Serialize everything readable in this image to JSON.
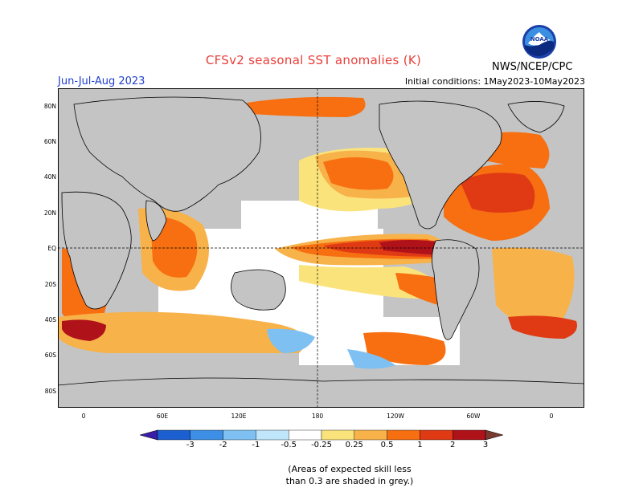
{
  "title": "CFSv2 seasonal SST anomalies (K)",
  "season": "Jun-Jul-Aug 2023",
  "initial_conditions": "Initial conditions: 1May2023-10May2023",
  "agency": "NWS/NCEP/CPC",
  "logo_text": "NOAA",
  "lat_labels": [
    "80N",
    "60N",
    "40N",
    "20N",
    "EQ",
    "20S",
    "40S",
    "60S",
    "80S"
  ],
  "lon_labels": [
    "0",
    "60E",
    "120E",
    "180",
    "120W",
    "60W",
    "0"
  ],
  "colorbar": {
    "labels": [
      "-3",
      "-2",
      "-1",
      "-0.5",
      "-0.25",
      "0.25",
      "0.5",
      "1",
      "2",
      "3"
    ],
    "colors": [
      "#3a1ea8",
      "#1b5fd0",
      "#3d8fe6",
      "#7ec0f2",
      "#bfe6fb",
      "#ffffff",
      "#fbe37c",
      "#f8b24a",
      "#f76f11",
      "#e03a15",
      "#b0121a",
      "#7a3a30"
    ]
  },
  "skill_note": [
    "(Areas of expected skill less",
    "than 0.3 are shaded in grey.)"
  ]
}
